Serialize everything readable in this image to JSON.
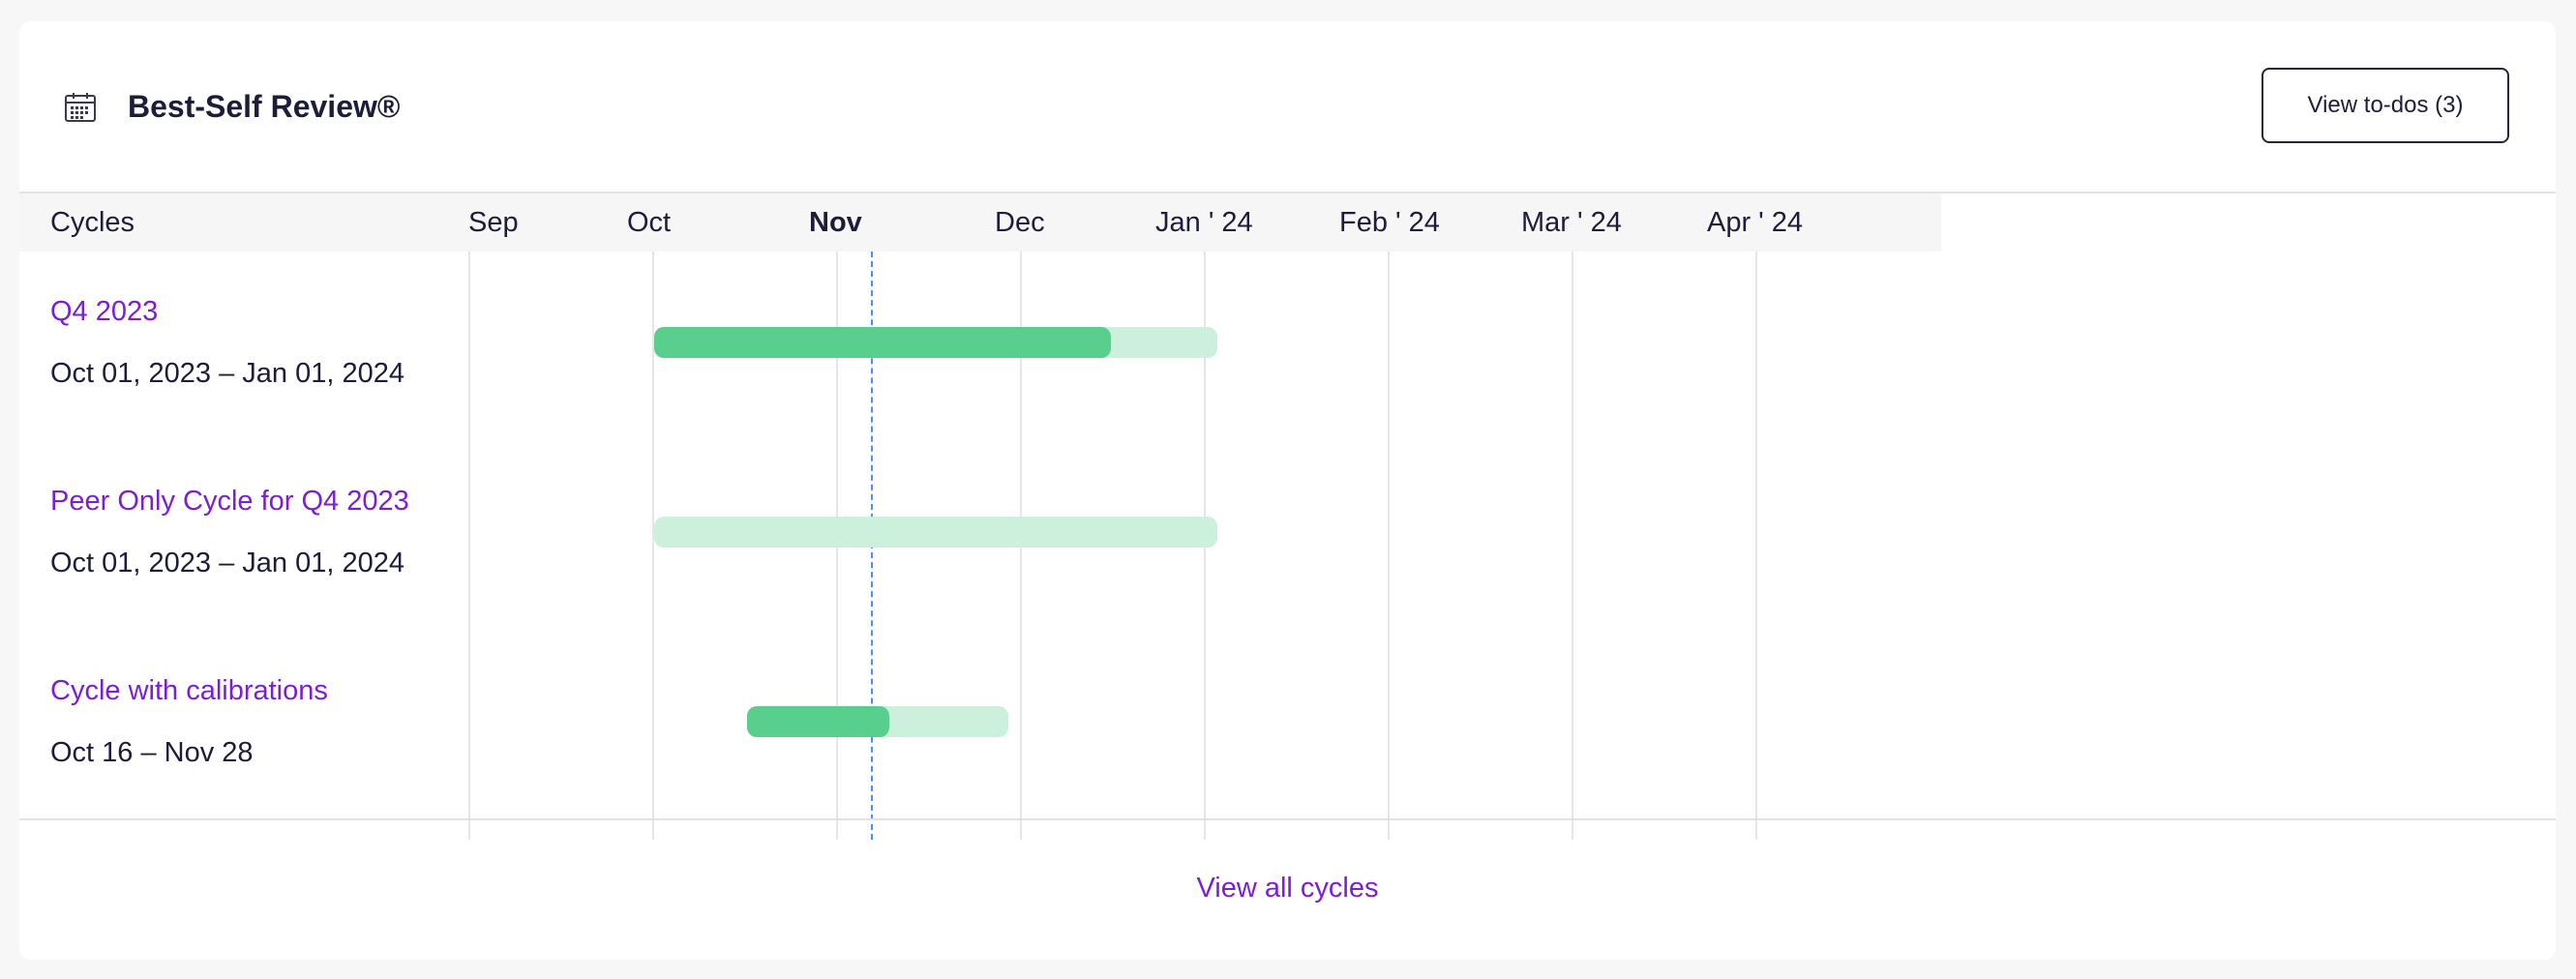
{
  "header": {
    "icon": "calendar-icon",
    "title": "Best-Self Review®",
    "todo_button": "View to-dos (3)"
  },
  "timeline": {
    "column_header": "Cycles",
    "months": [
      "Sep",
      "Oct",
      "Nov",
      "Dec",
      "Jan ' 24",
      "Feb ' 24",
      "Mar ' 24",
      "Apr ' 24"
    ],
    "current_month": "Nov"
  },
  "cycles": [
    {
      "name": "Q4 2023",
      "dates": "Oct 01, 2023 – Jan 01, 2024"
    },
    {
      "name": "Peer Only Cycle for Q4 2023",
      "dates": "Oct 01, 2023 – Jan 01, 2024"
    },
    {
      "name": "Cycle with calibrations",
      "dates": "Oct 16 – Nov 28"
    }
  ],
  "footer": {
    "view_all": "View all cycles"
  },
  "colors": {
    "accent": "#7a1fd6",
    "bar_fill": "#58cf8d",
    "bar_track": "#cdf0dc",
    "today_line": "#4f8cff"
  }
}
